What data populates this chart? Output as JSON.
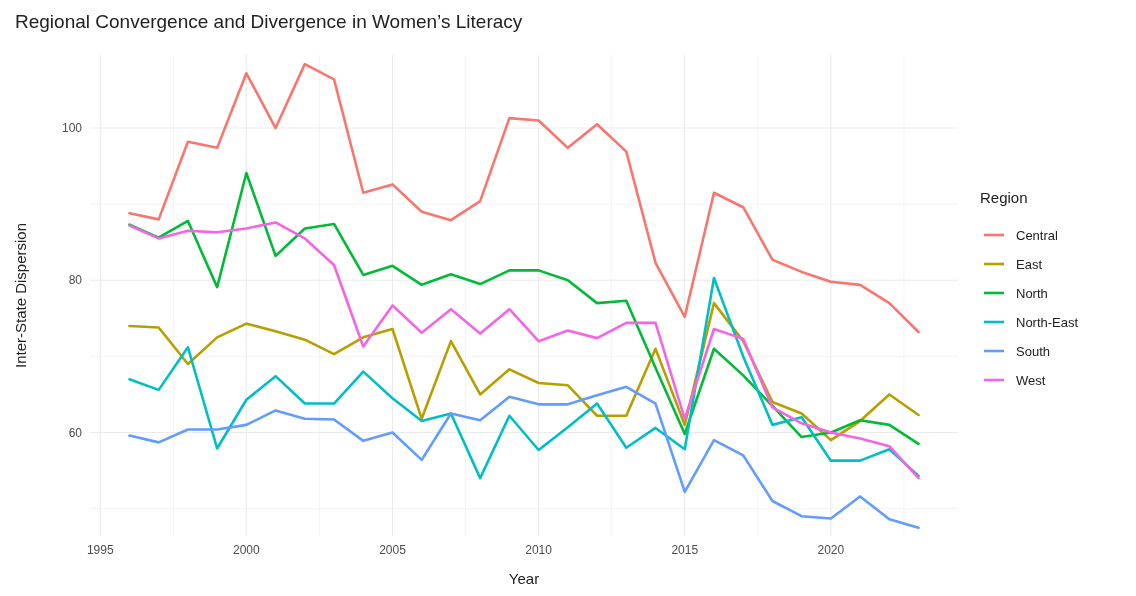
{
  "chart_data": {
    "type": "line",
    "title": "Regional Convergence and Divergence in Women’s Literacy",
    "xlabel": "Year",
    "ylabel": "Inter-State Dispersion",
    "legend_title": "Region",
    "legend": "right",
    "grid": true,
    "line_style": "solid",
    "x": [
      1996,
      1997,
      1998,
      1999,
      2000,
      2001,
      2002,
      2003,
      2004,
      2005,
      2006,
      2007,
      2008,
      2009,
      2010,
      2011,
      2012,
      2013,
      2014,
      2015,
      2016,
      2017,
      2018,
      2019,
      2020,
      2021,
      2022,
      2023
    ],
    "xlim": [
      1994.65,
      2024.35
    ],
    "xticks": [
      1995,
      {
        "value": 1997.5,
        "label": null
      },
      2000,
      {
        "value": 2002.5,
        "label": null
      },
      2005,
      {
        "value": 2007.5,
        "label": null
      },
      2010,
      {
        "value": 2012.5,
        "label": null
      },
      2015,
      {
        "value": 2017.5,
        "label": null
      },
      2020,
      {
        "value": 2022.5,
        "label": null
      }
    ],
    "ylim": [
      46.4,
      109.6
    ],
    "yticks": [
      {
        "value": 50,
        "label": null
      },
      60,
      {
        "value": 70,
        "label": null
      },
      80,
      {
        "value": 90,
        "label": null
      },
      100
    ],
    "series": [
      {
        "name": "Central",
        "color": "#f8766d",
        "values": [
          88.8,
          88,
          98.2,
          97.4,
          107.2,
          100,
          108.4,
          106.4,
          91.5,
          92.6,
          89,
          87.9,
          90.4,
          101.3,
          101,
          97.4,
          100.5,
          96.9,
          82.3,
          75.2,
          91.5,
          89.6,
          82.7,
          81.1,
          79.8,
          79.4,
          77,
          73.2
        ]
      },
      {
        "name": "East",
        "color": "#b79f00",
        "values": [
          74,
          73.8,
          69,
          72.5,
          74.3,
          73.3,
          72.2,
          70.3,
          72.5,
          73.6,
          61.8,
          72,
          65,
          68.3,
          66.5,
          66.2,
          62.2,
          62.2,
          71,
          61,
          77,
          72,
          64,
          62.5,
          59,
          61.5,
          65,
          62.3
        ]
      },
      {
        "name": "North",
        "color": "#00ba38",
        "values": [
          87.3,
          85.6,
          87.8,
          79.1,
          94.1,
          83.2,
          86.8,
          87.4,
          80.7,
          81.9,
          79.4,
          80.8,
          79.5,
          81.3,
          81.3,
          80,
          77,
          77.3,
          68.5,
          59.8,
          71,
          67.5,
          63.5,
          59.4,
          60,
          61.6,
          61,
          58.5
        ]
      },
      {
        "name": "North-East",
        "color": "#00bfc4",
        "values": [
          67,
          65.6,
          71.2,
          57.9,
          64.3,
          67.4,
          63.8,
          63.8,
          68,
          64.5,
          61.5,
          62.5,
          54,
          62.2,
          57.7,
          60.7,
          63.8,
          58,
          60.6,
          57.8,
          80.3,
          70,
          61,
          62,
          56.3,
          56.3,
          57.8,
          54.3
        ]
      },
      {
        "name": "South",
        "color": "#619cff",
        "values": [
          59.6,
          58.7,
          60.4,
          60.4,
          61,
          62.9,
          61.8,
          61.7,
          58.9,
          60,
          56.4,
          62.5,
          61.6,
          64.7,
          63.7,
          63.7,
          64.9,
          66,
          63.8,
          52.2,
          59,
          57,
          51,
          49,
          48.7,
          51.6,
          48.6,
          47.5
        ]
      },
      {
        "name": "West",
        "color": "#f564e3",
        "values": [
          87.2,
          85.5,
          86.5,
          86.3,
          86.8,
          87.6,
          85.5,
          82,
          71.3,
          76.7,
          73.1,
          76.2,
          73,
          76.2,
          72,
          73.4,
          72.4,
          74.4,
          74.4,
          61.8,
          73.6,
          72.3,
          63.3,
          61.2,
          60,
          59.2,
          58.2,
          54
        ]
      }
    ]
  }
}
